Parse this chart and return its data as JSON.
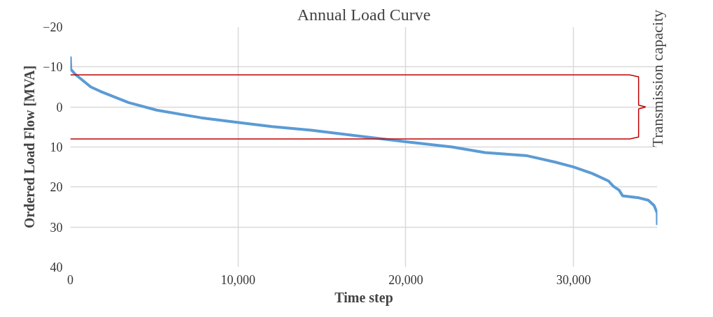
{
  "chart_data": {
    "type": "line",
    "title": "Annual Load Curve",
    "xlabel": "Time step",
    "ylabel": "Ordered Load Flow [MVA]",
    "x": [
      0,
      30,
      310,
      1220,
      1790,
      3470,
      5150,
      7800,
      10040,
      12010,
      14370,
      17860,
      20000,
      22760,
      24720,
      27240,
      28920,
      30000,
      31110,
      32090,
      32370,
      32720,
      32930,
      33900,
      34460,
      34800,
      34990,
      35000
    ],
    "series": [
      {
        "color": "#5b9bd5",
        "values": [
          -12.6,
          -9.4,
          -8.1,
          -5.0,
          -3.9,
          -1.1,
          0.8,
          2.7,
          3.9,
          4.9,
          5.8,
          7.6,
          8.7,
          10.0,
          11.4,
          12.2,
          13.8,
          15.0,
          16.6,
          18.5,
          19.8,
          20.8,
          22.2,
          22.7,
          23.3,
          24.6,
          26.5,
          29.5
        ]
      }
    ],
    "xlim": [
      0,
      35000
    ],
    "xticks": [
      {
        "value": 0,
        "label": "0"
      },
      {
        "value": 10000,
        "label": "10,000"
      },
      {
        "value": 20000,
        "label": "20,000"
      },
      {
        "value": 30000,
        "label": "30,000"
      }
    ],
    "ylim": [
      40,
      -20
    ],
    "yticks": [
      -20,
      -10,
      0,
      10,
      20,
      30,
      40
    ],
    "ref_lines": [
      {
        "axis": "y",
        "value": -8,
        "color": "#c00000"
      },
      {
        "axis": "y",
        "value": 8,
        "color": "#c00000"
      }
    ],
    "annotations": [
      "Transmission capacity"
    ],
    "grid": true,
    "marker": "none",
    "line_style": "solid"
  }
}
